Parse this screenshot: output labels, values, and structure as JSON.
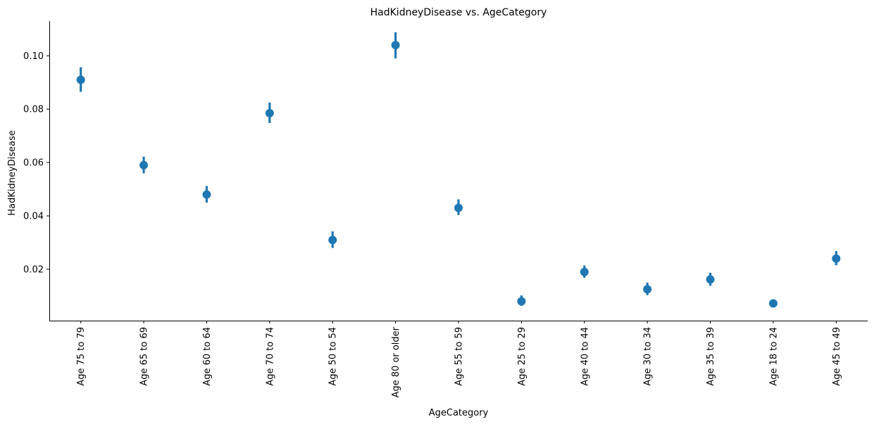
{
  "chart_data": {
    "type": "scatter",
    "title": "HadKidneyDisease vs. AgeCategory",
    "xlabel": "AgeCategory",
    "ylabel": "HadKidneyDisease",
    "categories": [
      "Age 75 to 79",
      "Age 65 to 69",
      "Age 60 to 64",
      "Age 70 to 74",
      "Age 50 to 54",
      "Age 80 or older",
      "Age 55 to 59",
      "Age 25 to 29",
      "Age 40 to 44",
      "Age 30 to 34",
      "Age 35 to 39",
      "Age 18 to 24",
      "Age 45 to 49"
    ],
    "series": [
      {
        "values": [
          0.091,
          0.059,
          0.048,
          0.0785,
          0.031,
          0.104,
          0.043,
          0.008,
          0.019,
          0.0125,
          0.0162,
          0.0072,
          0.024
        ],
        "ci_low": [
          0.0865,
          0.056,
          0.045,
          0.0748,
          0.028,
          0.099,
          0.0403,
          0.0063,
          0.0168,
          0.0103,
          0.0138,
          0.0058,
          0.0215
        ],
        "ci_high": [
          0.0957,
          0.0622,
          0.0512,
          0.0825,
          0.0342,
          0.1088,
          0.0462,
          0.0102,
          0.0214,
          0.015,
          0.0187,
          0.0087,
          0.0268
        ],
        "color": "#1f77b4"
      }
    ],
    "yticks": [
      0.02,
      0.04,
      0.06,
      0.08,
      0.1
    ],
    "ytick_labels": [
      "0.02",
      "0.04",
      "0.06",
      "0.08",
      "0.10"
    ],
    "ylim": [
      0.00075,
      0.113
    ],
    "grid": false,
    "legend": "none"
  }
}
